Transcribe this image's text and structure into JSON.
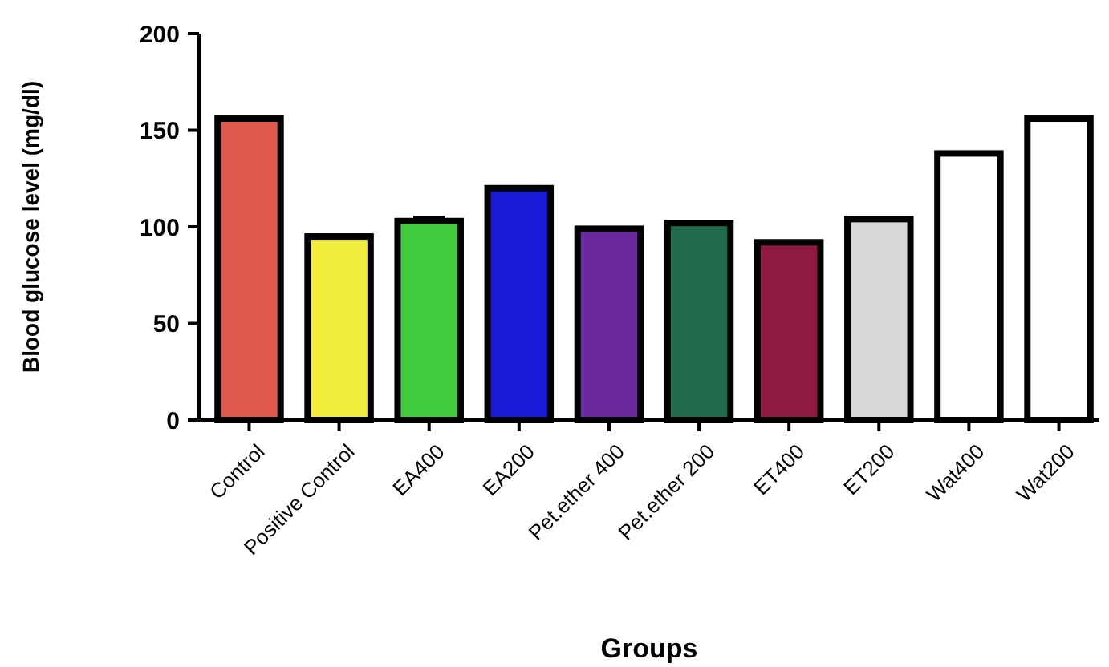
{
  "chart_data": {
    "type": "bar",
    "xlabel": "Groups",
    "ylabel": "Blood glucose level (mg/dl)",
    "categories": [
      "Control",
      "Positive Control",
      "EA400",
      "EA200",
      "Pet.ether 400",
      "Pet.ether 200",
      "ET400",
      "ET200",
      "Wat400",
      "Wat200"
    ],
    "values": [
      156,
      95,
      103,
      120,
      99,
      102,
      92,
      104,
      138,
      156
    ],
    "errors": [
      null,
      null,
      2,
      null,
      null,
      null,
      null,
      null,
      null,
      null
    ],
    "colors": [
      "#e0594c",
      "#f0ee3a",
      "#40cc3c",
      "#1a1ad8",
      "#6b2a9c",
      "#1f6b4c",
      "#8c1a42",
      "#d8d8d8",
      "#ffffff",
      "#ffffff"
    ],
    "ylim": [
      0,
      200
    ],
    "yticks": [
      0,
      50,
      100,
      150,
      200
    ],
    "grid": false
  }
}
